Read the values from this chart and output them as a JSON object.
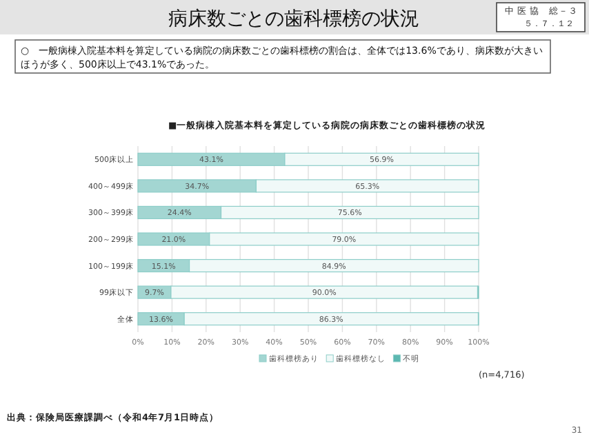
{
  "chart_data": {
    "type": "bar",
    "orientation": "horizontal",
    "stacked": true,
    "title": "■一般病棟入院基本料を算定している病院の病床数ごとの歯科標榜の状況",
    "categories": [
      "500床以上",
      "400～499床",
      "300～399床",
      "200～299床",
      "100～199床",
      "99床以下",
      "全体"
    ],
    "series": [
      {
        "name": "歯科標榜あり",
        "color": "#a3d6d2",
        "values": [
          43.1,
          34.7,
          24.4,
          21.0,
          15.1,
          9.7,
          13.6
        ],
        "value_labels": [
          "43.1%",
          "34.7%",
          "24.4%",
          "21.0%",
          "15.1%",
          "9.7%",
          "13.6%"
        ]
      },
      {
        "name": "歯科標榜なし",
        "color": "#f0f9f8",
        "values": [
          56.9,
          65.3,
          75.6,
          79.0,
          84.9,
          90.0,
          86.3
        ],
        "value_labels": [
          "56.9%",
          "65.3%",
          "75.6%",
          "79.0%",
          "84.9%",
          "90.0%",
          "86.3%"
        ]
      },
      {
        "name": "不明",
        "color": "#5cb8b1",
        "values": [
          0,
          0,
          0,
          0,
          0,
          0.3,
          0.1
        ]
      }
    ],
    "xlim": [
      0,
      100
    ],
    "xticks": [
      {
        "value": 0,
        "label": "0%"
      },
      {
        "value": 10,
        "label": "10%"
      },
      {
        "value": 20,
        "label": "20%"
      },
      {
        "value": 30,
        "label": "30%"
      },
      {
        "value": 40,
        "label": "40%"
      },
      {
        "value": 50,
        "label": "50%"
      },
      {
        "value": 60,
        "label": "60%"
      },
      {
        "value": 70,
        "label": "70%"
      },
      {
        "value": 80,
        "label": "80%"
      },
      {
        "value": 90,
        "label": "90%"
      },
      {
        "value": 100,
        "label": "100%"
      }
    ],
    "grid": "x",
    "legend": "bottom",
    "annotations": [
      "病床数ごとの歯科標榜の状況",
      "中 医 協　総－３",
      "５．７．１２",
      "○　一般病棟入院基本料を算定している病院の病床数ごとの歯科標榜の割合は、全体では13.6%であり、病床数が大きいほうが多く、500床以上で43.1%であった。",
      "(n=4,716)",
      "出典：保険局医療課調べ（令和4年7月1日時点）",
      "31"
    ]
  }
}
